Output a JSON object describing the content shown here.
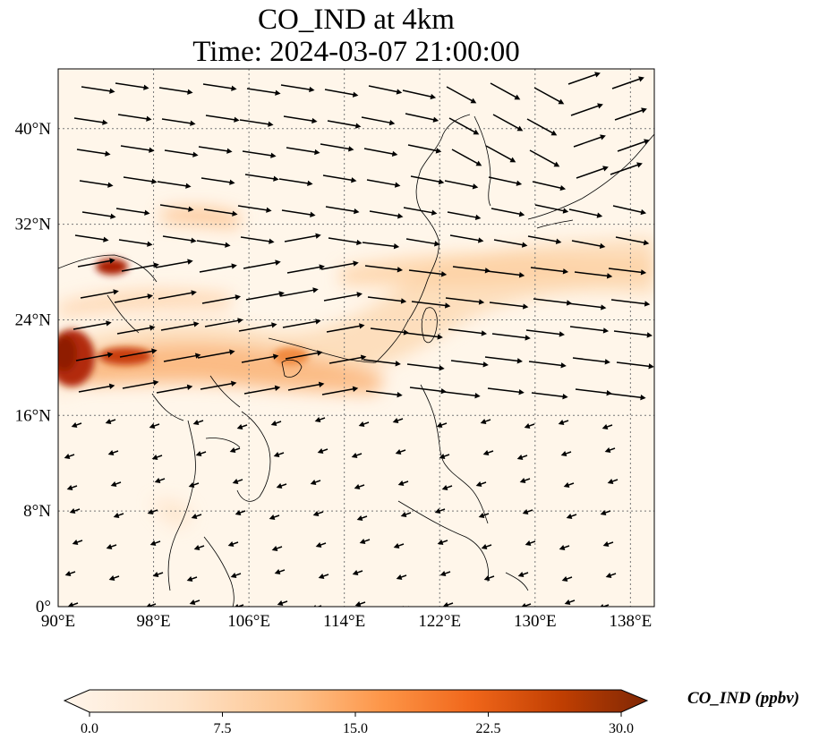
{
  "title": {
    "line1": "CO_IND at 4km",
    "line2": "Time: 2024-03-07 21:00:00"
  },
  "axes": {
    "lat_ticks": [
      "40°N",
      "32°N",
      "24°N",
      "16°N",
      "8°N",
      "0°"
    ],
    "lon_ticks": [
      "90°E",
      "98°E",
      "106°E",
      "114°E",
      "122°E",
      "130°E",
      "138°E"
    ],
    "lon_range": [
      90,
      140
    ],
    "lat_range": [
      0,
      45
    ],
    "grid": "dotted"
  },
  "colorbar": {
    "label": "CO_IND (ppbv)",
    "ticks": [
      "0.0",
      "7.5",
      "15.0",
      "22.5",
      "30.0"
    ],
    "range": [
      0,
      30
    ],
    "extend": "both",
    "colormap": [
      "#fff5eb",
      "#fdd9b4",
      "#fda762",
      "#f3701b",
      "#c54102",
      "#7f2704"
    ]
  },
  "map": {
    "background_color": "#fff6ea",
    "plume_color": "#fdd0a2",
    "hotspot_color": "#a50f15",
    "coastline_color": "#000000",
    "wind_arrow_color": "#000000"
  }
}
